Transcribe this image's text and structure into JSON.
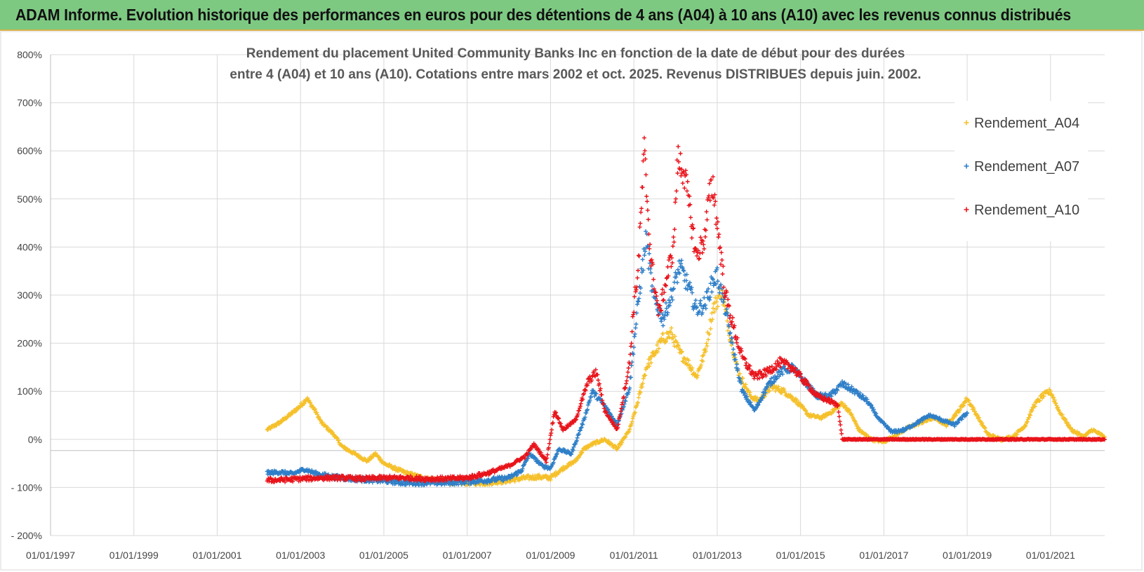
{
  "banner": {
    "title": "ADAM Informe. Evolution historique des performances en euros pour des détentions de 4 ans (A04) à 10 ans (A10) avec les revenus connus distribués"
  },
  "colors": {
    "banner_bg": "#7dc982",
    "A04": "#f5c02a",
    "A07": "#2f7fc8",
    "A10": "#e8141b",
    "grid": "#d9d9d9",
    "axis_text": "#444444"
  },
  "chart_data": {
    "type": "scatter",
    "title_lines": [
      "Rendement du placement United Community Banks Inc en fonction de la date de début pour des durées",
      "entre 4 (A04) et 10 ans (A10).  Cotations entre mars 2002 et oct. 2025. Revenus DISTRIBUES depuis juin. 2002."
    ],
    "xlabel": "",
    "ylabel": "",
    "xlim": [
      1997.0,
      2022.3
    ],
    "ylim": [
      -200,
      800
    ],
    "x_ticks": [
      "01/01/1997",
      "01/01/1999",
      "01/01/2001",
      "01/01/2003",
      "01/01/2005",
      "01/01/2007",
      "01/01/2009",
      "01/01/2011",
      "01/01/2013",
      "01/01/2015",
      "01/01/2017",
      "01/01/2019",
      "01/01/2021"
    ],
    "y_ticks": [
      "- 200%",
      "- 100%",
      "0%",
      "100%",
      "200%",
      "300%",
      "400%",
      "500%",
      "600%",
      "700%",
      "800%"
    ],
    "legend": [
      "Rendement_A04",
      "Rendement_A07",
      "Rendement_A10"
    ],
    "legend_position": "top-right",
    "series": [
      {
        "name": "Rendement_A04",
        "key": "A04",
        "points": [
          [
            2002.2,
            20
          ],
          [
            2002.5,
            35
          ],
          [
            2002.8,
            55
          ],
          [
            2003.0,
            70
          ],
          [
            2003.15,
            85
          ],
          [
            2003.35,
            60
          ],
          [
            2003.5,
            35
          ],
          [
            2003.8,
            10
          ],
          [
            2004.0,
            -15
          ],
          [
            2004.3,
            -30
          ],
          [
            2004.6,
            -45
          ],
          [
            2004.8,
            -30
          ],
          [
            2005.0,
            -50
          ],
          [
            2005.3,
            -62
          ],
          [
            2005.6,
            -72
          ],
          [
            2006.0,
            -82
          ],
          [
            2006.5,
            -88
          ],
          [
            2007.0,
            -90
          ],
          [
            2007.5,
            -90
          ],
          [
            2008.0,
            -85
          ],
          [
            2008.4,
            -80
          ],
          [
            2008.7,
            -78
          ],
          [
            2009.0,
            -80
          ],
          [
            2009.3,
            -60
          ],
          [
            2009.6,
            -45
          ],
          [
            2009.8,
            -20
          ],
          [
            2010.0,
            -10
          ],
          [
            2010.3,
            0
          ],
          [
            2010.6,
            -20
          ],
          [
            2010.9,
            20
          ],
          [
            2011.1,
            80
          ],
          [
            2011.3,
            150
          ],
          [
            2011.5,
            180
          ],
          [
            2011.7,
            210
          ],
          [
            2011.9,
            220
          ],
          [
            2012.1,
            180
          ],
          [
            2012.3,
            160
          ],
          [
            2012.5,
            130
          ],
          [
            2012.7,
            180
          ],
          [
            2012.9,
            270
          ],
          [
            2013.1,
            310
          ],
          [
            2013.3,
            220
          ],
          [
            2013.5,
            140
          ],
          [
            2013.8,
            90
          ],
          [
            2014.0,
            80
          ],
          [
            2014.3,
            110
          ],
          [
            2014.6,
            100
          ],
          [
            2014.9,
            80
          ],
          [
            2015.2,
            50
          ],
          [
            2015.5,
            45
          ],
          [
            2015.8,
            60
          ],
          [
            2016.0,
            75
          ],
          [
            2016.2,
            55
          ],
          [
            2016.4,
            20
          ],
          [
            2016.7,
            0
          ],
          [
            2017.0,
            -5
          ],
          [
            2017.3,
            10
          ],
          [
            2017.6,
            25
          ],
          [
            2017.9,
            35
          ],
          [
            2018.2,
            45
          ],
          [
            2018.5,
            30
          ],
          [
            2018.8,
            60
          ],
          [
            2019.0,
            85
          ],
          [
            2019.2,
            55
          ],
          [
            2019.5,
            10
          ],
          [
            2019.8,
            0
          ],
          [
            2020.1,
            5
          ],
          [
            2020.4,
            30
          ],
          [
            2020.6,
            70
          ],
          [
            2020.8,
            90
          ],
          [
            2021.0,
            100
          ],
          [
            2021.2,
            60
          ],
          [
            2021.5,
            20
          ],
          [
            2021.8,
            5
          ],
          [
            2022.0,
            20
          ],
          [
            2022.3,
            5
          ]
        ]
      },
      {
        "name": "Rendement_A07",
        "key": "A07",
        "points": [
          [
            2002.2,
            -70
          ],
          [
            2002.5,
            -68
          ],
          [
            2002.8,
            -72
          ],
          [
            2003.1,
            -62
          ],
          [
            2003.4,
            -72
          ],
          [
            2003.8,
            -78
          ],
          [
            2004.2,
            -82
          ],
          [
            2004.6,
            -84
          ],
          [
            2005.0,
            -86
          ],
          [
            2005.5,
            -90
          ],
          [
            2006.0,
            -90
          ],
          [
            2006.5,
            -90
          ],
          [
            2007.0,
            -88
          ],
          [
            2007.5,
            -85
          ],
          [
            2008.0,
            -80
          ],
          [
            2008.3,
            -65
          ],
          [
            2008.5,
            -30
          ],
          [
            2008.8,
            -55
          ],
          [
            2009.0,
            -60
          ],
          [
            2009.2,
            -20
          ],
          [
            2009.5,
            -30
          ],
          [
            2009.8,
            40
          ],
          [
            2010.0,
            100
          ],
          [
            2010.3,
            70
          ],
          [
            2010.6,
            30
          ],
          [
            2010.9,
            110
          ],
          [
            2011.0,
            200
          ],
          [
            2011.15,
            320
          ],
          [
            2011.3,
            420
          ],
          [
            2011.45,
            300
          ],
          [
            2011.7,
            250
          ],
          [
            2011.9,
            300
          ],
          [
            2012.1,
            360
          ],
          [
            2012.3,
            320
          ],
          [
            2012.5,
            270
          ],
          [
            2012.7,
            280
          ],
          [
            2012.9,
            330
          ],
          [
            2013.0,
            340
          ],
          [
            2013.2,
            270
          ],
          [
            2013.4,
            180
          ],
          [
            2013.6,
            100
          ],
          [
            2013.9,
            60
          ],
          [
            2014.2,
            110
          ],
          [
            2014.5,
            140
          ],
          [
            2014.8,
            150
          ],
          [
            2015.1,
            120
          ],
          [
            2015.4,
            90
          ],
          [
            2015.7,
            90
          ],
          [
            2016.0,
            115
          ],
          [
            2016.3,
            100
          ],
          [
            2016.6,
            80
          ],
          [
            2016.9,
            40
          ],
          [
            2017.2,
            15
          ],
          [
            2017.5,
            20
          ],
          [
            2017.8,
            35
          ],
          [
            2018.1,
            50
          ],
          [
            2018.4,
            40
          ],
          [
            2018.7,
            30
          ],
          [
            2019.0,
            55
          ]
        ]
      },
      {
        "name": "Rendement_A10",
        "key": "A10",
        "points": [
          [
            2002.2,
            -85
          ],
          [
            2002.6,
            -84
          ],
          [
            2003.0,
            -82
          ],
          [
            2003.5,
            -80
          ],
          [
            2004.0,
            -80
          ],
          [
            2004.5,
            -82
          ],
          [
            2005.0,
            -80
          ],
          [
            2005.5,
            -80
          ],
          [
            2006.0,
            -82
          ],
          [
            2006.5,
            -82
          ],
          [
            2007.0,
            -80
          ],
          [
            2007.5,
            -70
          ],
          [
            2008.0,
            -55
          ],
          [
            2008.4,
            -35
          ],
          [
            2008.6,
            -10
          ],
          [
            2008.9,
            -45
          ],
          [
            2009.1,
            60
          ],
          [
            2009.3,
            20
          ],
          [
            2009.6,
            40
          ],
          [
            2009.9,
            120
          ],
          [
            2010.1,
            140
          ],
          [
            2010.3,
            60
          ],
          [
            2010.6,
            20
          ],
          [
            2010.9,
            160
          ],
          [
            2011.0,
            280
          ],
          [
            2011.1,
            350
          ],
          [
            2011.25,
            600
          ],
          [
            2011.4,
            380
          ],
          [
            2011.6,
            260
          ],
          [
            2011.8,
            340
          ],
          [
            2011.95,
            400
          ],
          [
            2012.05,
            580
          ],
          [
            2012.2,
            560
          ],
          [
            2012.35,
            470
          ],
          [
            2012.5,
            380
          ],
          [
            2012.7,
            420
          ],
          [
            2012.8,
            500
          ],
          [
            2012.9,
            530
          ],
          [
            2013.0,
            450
          ],
          [
            2013.2,
            300
          ],
          [
            2013.4,
            230
          ],
          [
            2013.6,
            170
          ],
          [
            2013.9,
            130
          ],
          [
            2014.2,
            140
          ],
          [
            2014.5,
            160
          ],
          [
            2014.8,
            150
          ],
          [
            2015.1,
            120
          ],
          [
            2015.4,
            90
          ],
          [
            2015.7,
            80
          ],
          [
            2015.9,
            70
          ],
          [
            2016.0,
            0
          ],
          [
            2022.3,
            0
          ]
        ]
      }
    ]
  }
}
